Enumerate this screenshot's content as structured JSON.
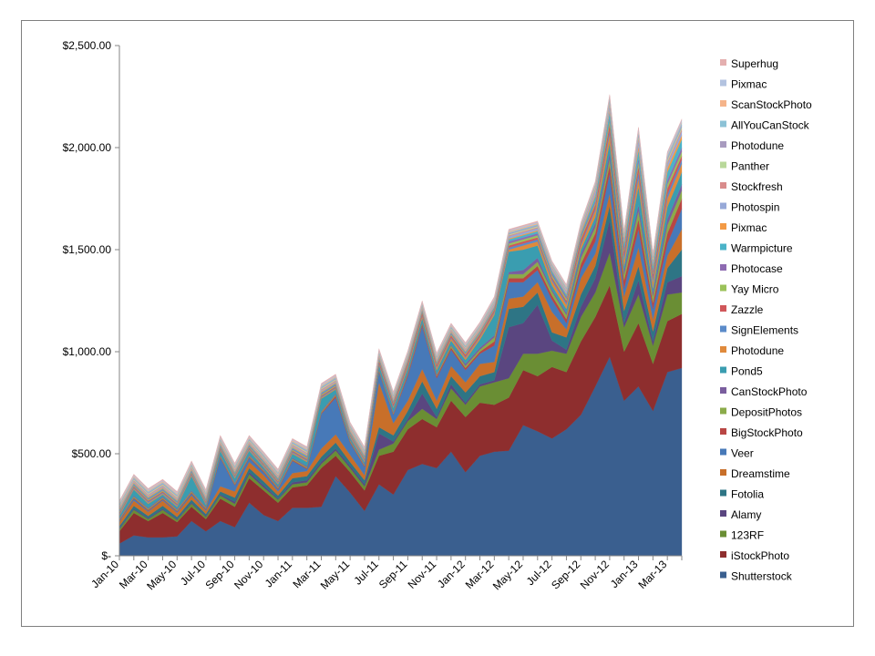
{
  "chart_data": {
    "type": "area",
    "stacked": true,
    "title": "",
    "xlabel": "",
    "ylabel": "",
    "ylim": [
      0,
      2500
    ],
    "y_ticks": [
      0,
      500,
      1000,
      1500,
      2000,
      2500
    ],
    "y_tick_labels": [
      "$-",
      "$500.00",
      "$1,000.00",
      "$1,500.00",
      "$2,000.00",
      "$2,500.00"
    ],
    "x": [
      "Jan-10",
      "Feb-10",
      "Mar-10",
      "Apr-10",
      "May-10",
      "Jun-10",
      "Jul-10",
      "Aug-10",
      "Sep-10",
      "Oct-10",
      "Nov-10",
      "Dec-10",
      "Jan-11",
      "Feb-11",
      "Mar-11",
      "Apr-11",
      "May-11",
      "Jun-11",
      "Jul-11",
      "Aug-11",
      "Sep-11",
      "Oct-11",
      "Nov-11",
      "Dec-11",
      "Jan-12",
      "Feb-12",
      "Mar-12",
      "Apr-12",
      "May-12",
      "Jun-12",
      "Jul-12",
      "Aug-12",
      "Sep-12",
      "Oct-12",
      "Nov-12",
      "Dec-12",
      "Jan-13",
      "Feb-13",
      "Mar-13",
      "Apr-13"
    ],
    "x_tick_labels": [
      "Jan-10",
      "Mar-10",
      "May-10",
      "Jul-10",
      "Sep-10",
      "Nov-10",
      "Jan-11",
      "Mar-11",
      "May-11",
      "Jul-11",
      "Sep-11",
      "Nov-11",
      "Jan-12",
      "Mar-12",
      "May-12",
      "Jul-12",
      "Sep-12",
      "Nov-12",
      "Jan-13",
      "Mar-13"
    ],
    "grid": false,
    "legend_position": "right",
    "series": [
      {
        "name": "Shutterstock",
        "color": "#3A5F8F",
        "values": [
          60,
          100,
          90,
          90,
          95,
          170,
          120,
          170,
          140,
          260,
          200,
          170,
          235,
          235,
          240,
          390,
          310,
          220,
          350,
          300,
          420,
          450,
          430,
          510,
          410,
          490,
          510,
          515,
          640,
          610,
          575,
          620,
          690,
          830,
          975,
          760,
          830,
          710,
          900,
          920
        ]
      },
      {
        "name": "iStockPhoto",
        "color": "#8E2E2E",
        "values": [
          60,
          110,
          80,
          120,
          70,
          70,
          60,
          110,
          100,
          120,
          120,
          90,
          100,
          110,
          190,
          100,
          100,
          100,
          140,
          210,
          200,
          220,
          200,
          250,
          270,
          260,
          230,
          260,
          270,
          270,
          350,
          280,
          360,
          340,
          350,
          240,
          310,
          230,
          250,
          265
        ]
      },
      {
        "name": "123RF",
        "color": "#6A8E34",
        "values": [
          10,
          15,
          10,
          15,
          10,
          15,
          10,
          15,
          15,
          20,
          15,
          15,
          15,
          15,
          20,
          25,
          20,
          20,
          30,
          40,
          40,
          50,
          40,
          60,
          60,
          80,
          110,
          95,
          80,
          110,
          80,
          90,
          120,
          120,
          160,
          120,
          140,
          90,
          130,
          105
        ]
      },
      {
        "name": "Alamy",
        "color": "#5A4680",
        "values": [
          5,
          5,
          5,
          5,
          5,
          5,
          5,
          5,
          10,
          10,
          10,
          5,
          10,
          10,
          10,
          10,
          10,
          10,
          80,
          10,
          10,
          75,
          10,
          20,
          10,
          10,
          10,
          250,
          150,
          240,
          50,
          20,
          50,
          70,
          160,
          20,
          70,
          20,
          60,
          80
        ]
      },
      {
        "name": "Fotolia",
        "color": "#2E7585",
        "values": [
          10,
          15,
          10,
          15,
          10,
          15,
          10,
          15,
          20,
          20,
          20,
          15,
          20,
          20,
          25,
          30,
          20,
          20,
          30,
          30,
          40,
          60,
          40,
          40,
          50,
          40,
          40,
          90,
          80,
          60,
          40,
          60,
          60,
          60,
          70,
          60,
          70,
          50,
          70,
          130
        ]
      },
      {
        "name": "Dreamstime",
        "color": "#C86F2A",
        "values": [
          20,
          25,
          20,
          25,
          20,
          20,
          15,
          25,
          30,
          30,
          30,
          20,
          25,
          25,
          40,
          40,
          35,
          25,
          220,
          60,
          50,
          60,
          40,
          50,
          50,
          60,
          50,
          50,
          50,
          50,
          100,
          40,
          80,
          60,
          60,
          70,
          90,
          60,
          60,
          100
        ]
      },
      {
        "name": "Veer",
        "color": "#4779B8",
        "values": [
          5,
          10,
          5,
          5,
          5,
          10,
          5,
          140,
          30,
          20,
          15,
          10,
          60,
          10,
          170,
          180,
          60,
          40,
          50,
          40,
          120,
          210,
          110,
          80,
          60,
          50,
          80,
          80,
          70,
          60,
          60,
          30,
          40,
          60,
          100,
          40,
          90,
          50,
          60,
          100
        ]
      },
      {
        "name": "BigStockPhoto",
        "color": "#B94644",
        "values": [
          5,
          5,
          5,
          5,
          5,
          5,
          5,
          5,
          5,
          5,
          5,
          5,
          5,
          5,
          5,
          10,
          5,
          5,
          5,
          5,
          10,
          10,
          10,
          10,
          10,
          10,
          20,
          20,
          20,
          20,
          20,
          20,
          30,
          40,
          40,
          40,
          50,
          30,
          50,
          50
        ]
      },
      {
        "name": "DepositPhotos",
        "color": "#8BAB4A",
        "values": [
          5,
          5,
          5,
          5,
          5,
          5,
          5,
          5,
          5,
          5,
          5,
          5,
          5,
          5,
          5,
          5,
          5,
          5,
          5,
          5,
          5,
          5,
          5,
          10,
          10,
          10,
          20,
          20,
          20,
          20,
          20,
          20,
          30,
          30,
          30,
          30,
          40,
          30,
          40,
          40
        ]
      },
      {
        "name": "CanStockPhoto",
        "color": "#7A5E9E",
        "values": [
          5,
          5,
          5,
          5,
          5,
          5,
          5,
          5,
          5,
          5,
          5,
          5,
          5,
          5,
          5,
          5,
          5,
          5,
          5,
          5,
          5,
          5,
          5,
          5,
          10,
          10,
          10,
          10,
          20,
          20,
          10,
          10,
          20,
          20,
          30,
          20,
          30,
          20,
          30,
          30
        ]
      },
      {
        "name": "Pond5",
        "color": "#3A9DB0",
        "values": [
          10,
          30,
          20,
          10,
          10,
          70,
          10,
          20,
          20,
          20,
          10,
          10,
          20,
          20,
          60,
          20,
          10,
          10,
          20,
          20,
          20,
          20,
          20,
          20,
          20,
          40,
          100,
          100,
          100,
          60,
          20,
          20,
          20,
          30,
          50,
          20,
          90,
          20,
          60,
          60
        ]
      },
      {
        "name": "Photodune",
        "color": "#E08A3C",
        "values": [
          5,
          5,
          5,
          5,
          5,
          5,
          5,
          5,
          5,
          5,
          5,
          5,
          5,
          5,
          5,
          5,
          5,
          5,
          5,
          5,
          10,
          10,
          10,
          10,
          10,
          10,
          10,
          10,
          20,
          20,
          20,
          20,
          20,
          30,
          40,
          30,
          40,
          30,
          40,
          40
        ]
      },
      {
        "name": "SignElements",
        "color": "#5B8BC9",
        "values": [
          5,
          5,
          5,
          5,
          5,
          5,
          5,
          5,
          5,
          5,
          5,
          5,
          5,
          5,
          5,
          5,
          5,
          5,
          5,
          5,
          5,
          5,
          5,
          5,
          5,
          5,
          5,
          10,
          10,
          10,
          10,
          10,
          10,
          10,
          20,
          20,
          30,
          20,
          20,
          20
        ]
      },
      {
        "name": "Zazzle",
        "color": "#D0575A",
        "values": [
          5,
          5,
          5,
          5,
          5,
          5,
          5,
          5,
          5,
          5,
          5,
          5,
          5,
          5,
          5,
          5,
          5,
          5,
          10,
          10,
          10,
          10,
          10,
          10,
          10,
          10,
          10,
          10,
          10,
          10,
          10,
          10,
          20,
          20,
          30,
          20,
          30,
          20,
          30,
          20
        ]
      },
      {
        "name": "Yay Micro",
        "color": "#9BC25A",
        "values": [
          5,
          5,
          5,
          5,
          5,
          5,
          5,
          5,
          5,
          5,
          5,
          5,
          5,
          5,
          5,
          5,
          5,
          5,
          5,
          5,
          5,
          5,
          5,
          5,
          5,
          5,
          5,
          10,
          10,
          10,
          10,
          10,
          10,
          10,
          20,
          10,
          20,
          10,
          20,
          20
        ]
      },
      {
        "name": "Photocase",
        "color": "#8E6BB2",
        "values": [
          5,
          5,
          5,
          5,
          5,
          5,
          5,
          5,
          5,
          5,
          5,
          5,
          5,
          5,
          5,
          5,
          5,
          5,
          5,
          5,
          5,
          5,
          5,
          5,
          5,
          5,
          5,
          10,
          10,
          10,
          10,
          10,
          10,
          10,
          10,
          10,
          20,
          10,
          20,
          20
        ]
      },
      {
        "name": "Warmpicture",
        "color": "#4BB3C8",
        "values": [
          5,
          5,
          5,
          5,
          5,
          5,
          5,
          5,
          5,
          5,
          5,
          5,
          5,
          5,
          5,
          5,
          5,
          5,
          5,
          5,
          5,
          5,
          5,
          5,
          5,
          5,
          5,
          10,
          10,
          10,
          10,
          10,
          10,
          20,
          30,
          20,
          40,
          20,
          40,
          40
        ]
      },
      {
        "name": "Pixmac",
        "color": "#F39A45",
        "values": [
          5,
          5,
          5,
          5,
          5,
          5,
          5,
          5,
          5,
          5,
          5,
          5,
          5,
          5,
          5,
          5,
          5,
          5,
          5,
          5,
          5,
          5,
          5,
          5,
          5,
          5,
          5,
          5,
          5,
          5,
          5,
          5,
          10,
          10,
          10,
          10,
          20,
          10,
          20,
          20
        ]
      },
      {
        "name": "Photospin",
        "color": "#97A9D8",
        "values": [
          5,
          5,
          5,
          5,
          5,
          5,
          5,
          5,
          5,
          5,
          5,
          5,
          5,
          5,
          5,
          5,
          5,
          5,
          5,
          5,
          5,
          5,
          5,
          5,
          5,
          5,
          10,
          10,
          10,
          10,
          10,
          10,
          10,
          20,
          20,
          10,
          30,
          10,
          20,
          20
        ]
      },
      {
        "name": "Stockfresh",
        "color": "#D98C8C",
        "values": [
          5,
          5,
          5,
          5,
          5,
          5,
          5,
          5,
          5,
          5,
          5,
          5,
          5,
          5,
          5,
          5,
          5,
          5,
          5,
          5,
          5,
          5,
          5,
          5,
          5,
          5,
          5,
          5,
          5,
          5,
          5,
          5,
          5,
          10,
          10,
          10,
          10,
          10,
          10,
          10
        ]
      },
      {
        "name": "Panther",
        "color": "#B9D89A",
        "values": [
          5,
          5,
          5,
          5,
          5,
          5,
          5,
          5,
          5,
          5,
          5,
          5,
          5,
          5,
          5,
          5,
          5,
          5,
          5,
          5,
          5,
          5,
          5,
          5,
          5,
          5,
          5,
          5,
          5,
          5,
          5,
          5,
          5,
          10,
          10,
          10,
          10,
          10,
          10,
          10
        ]
      },
      {
        "name": "Photodune",
        "color": "#A89BBF",
        "values": [
          5,
          5,
          5,
          5,
          5,
          5,
          5,
          5,
          5,
          5,
          5,
          5,
          5,
          5,
          5,
          5,
          5,
          5,
          5,
          5,
          5,
          5,
          5,
          5,
          5,
          5,
          5,
          5,
          5,
          5,
          5,
          5,
          5,
          5,
          10,
          5,
          10,
          5,
          10,
          10
        ]
      },
      {
        "name": "AllYouCanStock",
        "color": "#8CC2D6",
        "values": [
          5,
          5,
          5,
          5,
          5,
          5,
          5,
          5,
          5,
          5,
          5,
          5,
          5,
          5,
          5,
          5,
          5,
          5,
          5,
          5,
          5,
          5,
          5,
          5,
          5,
          5,
          5,
          5,
          5,
          5,
          5,
          5,
          5,
          5,
          10,
          5,
          10,
          5,
          10,
          10
        ]
      },
      {
        "name": "ScanStockPhoto",
        "color": "#F5B48A",
        "values": [
          5,
          5,
          5,
          5,
          5,
          5,
          5,
          5,
          5,
          5,
          5,
          5,
          5,
          5,
          5,
          5,
          5,
          5,
          5,
          5,
          5,
          5,
          5,
          5,
          5,
          5,
          5,
          5,
          5,
          5,
          5,
          5,
          5,
          5,
          5,
          5,
          5,
          5,
          5,
          5
        ]
      },
      {
        "name": "Pixmac",
        "color": "#B3C3E0",
        "values": [
          5,
          5,
          5,
          5,
          5,
          5,
          5,
          5,
          5,
          5,
          5,
          5,
          5,
          5,
          5,
          5,
          5,
          5,
          5,
          5,
          5,
          5,
          5,
          5,
          5,
          5,
          5,
          5,
          5,
          5,
          5,
          5,
          5,
          5,
          5,
          5,
          10,
          5,
          10,
          10
        ]
      },
      {
        "name": "Superhug",
        "color": "#E4AFAF",
        "values": [
          5,
          5,
          5,
          5,
          5,
          5,
          5,
          5,
          5,
          5,
          5,
          5,
          5,
          5,
          5,
          5,
          5,
          5,
          5,
          5,
          5,
          5,
          5,
          5,
          5,
          5,
          5,
          5,
          5,
          5,
          5,
          5,
          5,
          5,
          5,
          5,
          5,
          5,
          5,
          5
        ]
      }
    ]
  }
}
